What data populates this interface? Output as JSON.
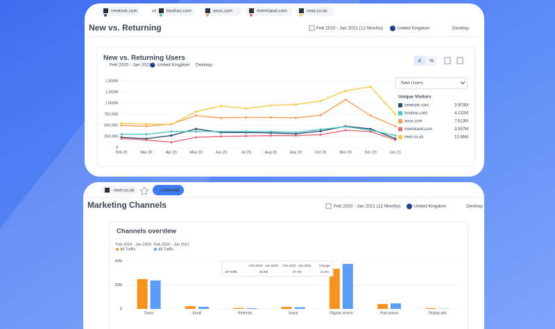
{
  "top": {
    "tabs": [
      "newlook.com",
      "boohoo.com",
      "asos.com",
      "riverisland.com",
      "next.co.uk"
    ],
    "vs": "vs",
    "title": "New vs. Returning",
    "date": "Feb 2020 - Jan 2021 (12 Months)",
    "country": "United Kingdom",
    "device": "Desktop",
    "card_title": "New vs. Returning Users",
    "card_date": "Feb 2020 - Jan 2021",
    "card_country": "United Kingdom",
    "card_device": "Desktop",
    "toggle": [
      "#",
      "%"
    ],
    "dropdown": "New Users",
    "legend_title": "Unique Visitors",
    "legend_totals": [
      "3.903M",
      "4.132M",
      "7.913M",
      "3.057M",
      "10.46M"
    ]
  },
  "bottom": {
    "site": "next.co.uk",
    "compare": "COMPARE",
    "title": "Marketing Channels",
    "date": "Feb 2020 - Jan 2021 (12 Months)",
    "country": "United Kingdom",
    "device": "Desktop",
    "card_title": "Channels overview",
    "tooltip": {
      "headers": [
        "Feb 2019 - Jan 2020",
        "Feb 2020 - Jan 2021",
        "Change"
      ],
      "row": [
        "All Traffic",
        "33.6M",
        "37.7M",
        "12.2%"
      ]
    }
  },
  "chart_data": [
    {
      "type": "line",
      "categories": [
        "Feb 20",
        "Mar 20",
        "Apr 20",
        "May 20",
        "Jun 20",
        "Jul 20",
        "Aug 20",
        "Sep 20",
        "Oct 20",
        "Nov 20",
        "Dec 20",
        "Jan 21"
      ],
      "ylim": [
        0,
        1500000
      ],
      "yticks": [
        0,
        {
          "value": 250000,
          "label": "250,000"
        },
        {
          "value": 500000,
          "label": "500,000"
        },
        {
          "value": 750000,
          "label": "750,000"
        },
        {
          "value": 1000000,
          "label": "1.000M"
        },
        {
          "value": 1250000,
          "label": "1.250M"
        },
        {
          "value": 1500000,
          "label": "1.500M"
        }
      ],
      "grid": true,
      "series": [
        {
          "name": "newlook.com",
          "color": "#2f4a6b",
          "values": [
            230000,
            200000,
            270000,
            420000,
            340000,
            340000,
            330000,
            310000,
            370000,
            480000,
            420000,
            200000
          ]
        },
        {
          "name": "boohoo.com",
          "color": "#4fc3c0",
          "values": [
            300000,
            300000,
            360000,
            360000,
            360000,
            360000,
            360000,
            340000,
            410000,
            470000,
            390000,
            270000
          ]
        },
        {
          "name": "asos.com",
          "color": "#f5a05a",
          "values": [
            500000,
            480000,
            530000,
            720000,
            670000,
            680000,
            680000,
            670000,
            730000,
            1080000,
            720000,
            480000
          ]
        },
        {
          "name": "riverisland.com",
          "color": "#e56b7a",
          "values": [
            200000,
            170000,
            120000,
            230000,
            250000,
            260000,
            270000,
            270000,
            290000,
            390000,
            360000,
            170000
          ]
        },
        {
          "name": "next.co.uk",
          "color": "#f7c948",
          "values": [
            550000,
            530000,
            520000,
            810000,
            940000,
            880000,
            950000,
            970000,
            1050000,
            1280000,
            1370000,
            750000
          ]
        }
      ]
    },
    {
      "type": "bar",
      "categories": [
        "Direct",
        "Email",
        "Referrals",
        "Social",
        "Organic search",
        "Paid search",
        "Display ads"
      ],
      "ylim": [
        0,
        40000000
      ],
      "yticks": [
        0,
        {
          "value": 20000000,
          "label": "20M"
        },
        {
          "value": 40000000,
          "label": "40M"
        }
      ],
      "grid": true,
      "series": [
        {
          "name": "Feb 2019 - Jan 2020",
          "legend_note": "All Traffic",
          "color": "#f7931e",
          "values": [
            25000000,
            2300000,
            800000,
            1700000,
            33600000,
            4100000,
            700000
          ]
        },
        {
          "name": "Feb 2020 - Jan 2021",
          "legend_note": "All Traffic",
          "color": "#5b9cf6",
          "values": [
            23800000,
            1700000,
            600000,
            1400000,
            37700000,
            4600000,
            200000
          ]
        }
      ]
    }
  ]
}
